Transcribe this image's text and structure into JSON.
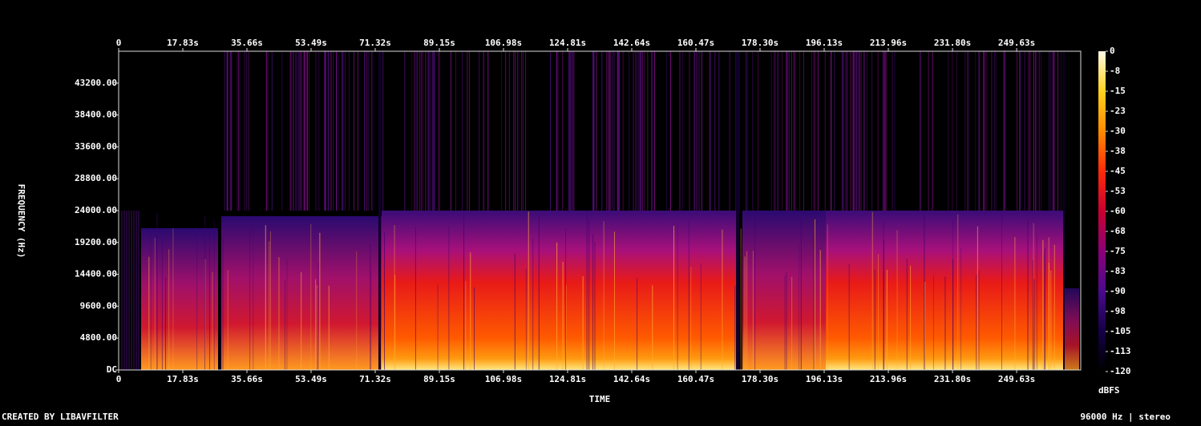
{
  "chart_data": {
    "type": "spectrogram",
    "x_label": "TIME",
    "y_label": "FREQUENCY (Hz)",
    "colorbar_label": "dBFS",
    "footer_left": "CREATED BY LIBAVFILTER",
    "footer_right": "96000 Hz | stereo",
    "xlim": [
      0,
      267.45
    ],
    "xticks": [
      0,
      {
        "value": 17.83,
        "label": "17.83s"
      },
      {
        "value": 35.66,
        "label": "35.66s"
      },
      {
        "value": 53.49,
        "label": "53.49s"
      },
      {
        "value": 71.32,
        "label": "71.32s"
      },
      {
        "value": 89.15,
        "label": "89.15s"
      },
      {
        "value": 106.98,
        "label": "106.98s"
      },
      {
        "value": 124.81,
        "label": "124.81s"
      },
      {
        "value": 142.64,
        "label": "142.64s"
      },
      {
        "value": 160.47,
        "label": "160.47s"
      },
      {
        "value": 178.3,
        "label": "178.30s"
      },
      {
        "value": 196.13,
        "label": "196.13s"
      },
      {
        "value": 213.96,
        "label": "213.96s"
      },
      {
        "value": 231.8,
        "label": "231.80s"
      },
      {
        "value": 249.63,
        "label": "249.63s"
      }
    ],
    "ylim": [
      0,
      48000
    ],
    "yticks": [
      {
        "value": 0,
        "label": "DC"
      },
      {
        "value": 4800,
        "label": "4800.00"
      },
      {
        "value": 9600,
        "label": "9600.00"
      },
      {
        "value": 14400,
        "label": "14400.00"
      },
      {
        "value": 19200,
        "label": "19200.00"
      },
      {
        "value": 24000,
        "label": "24000.00"
      },
      {
        "value": 28800,
        "label": "28800.00"
      },
      {
        "value": 33600,
        "label": "33600.00"
      },
      {
        "value": 38400,
        "label": "38400.00"
      },
      {
        "value": 43200,
        "label": "43200.00"
      }
    ],
    "clim": [
      -120,
      0
    ],
    "cticks": [
      0,
      {
        "value": -7.5,
        "label": "-8"
      },
      -15,
      {
        "value": -22.5,
        "label": "-23"
      },
      -30,
      {
        "value": -37.5,
        "label": "-38"
      },
      -45,
      {
        "value": -52.5,
        "label": "-53"
      },
      -60,
      {
        "value": -67.5,
        "label": "-68"
      },
      -75,
      {
        "value": -82.5,
        "label": "-83"
      },
      -90,
      {
        "value": -97.5,
        "label": "-98"
      },
      -105,
      {
        "value": -112.5,
        "label": "-113"
      },
      -120
    ],
    "colorscale": [
      "#fffbe6",
      "#ffd21e",
      "#ff8a00",
      "#ff2a0a",
      "#c80030",
      "#8a0078",
      "#4a0a8c",
      "#140046",
      "#000000"
    ]
  }
}
